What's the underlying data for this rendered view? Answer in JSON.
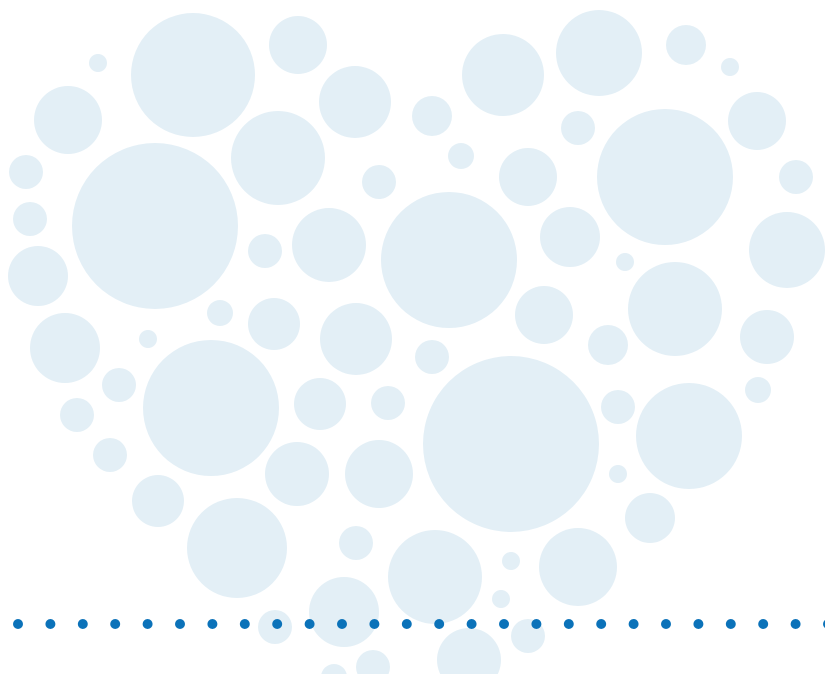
{
  "colors": {
    "background": "#ffffff",
    "heart_bubbles": "#e3eff6",
    "dot_divider": "#0b72b9"
  },
  "graphic": {
    "heart_icon": "heart-of-circles-icon",
    "divider_icon": "dotted-line-icon"
  }
}
